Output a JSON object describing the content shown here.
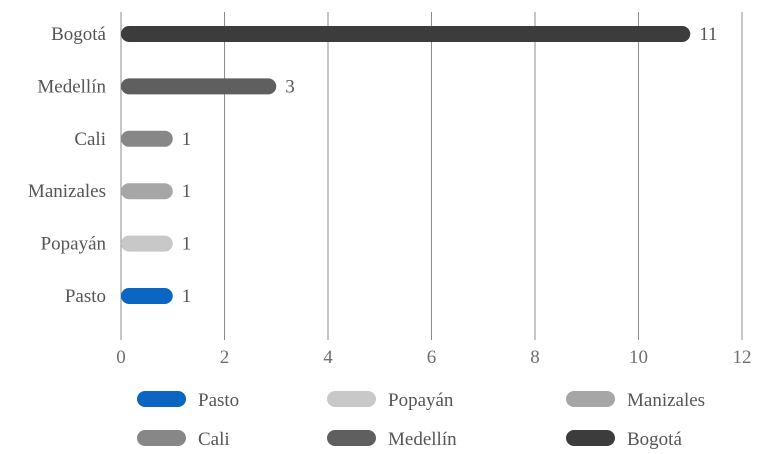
{
  "chart_data": {
    "type": "bar",
    "orientation": "horizontal",
    "title": "",
    "xlabel": "",
    "ylabel": "",
    "categories": [
      "Pasto",
      "Popayán",
      "Manizales",
      "Cali",
      "Medellín",
      "Bogotá"
    ],
    "values": [
      1,
      1,
      1,
      1,
      3,
      11
    ],
    "bar_value_labels": [
      "1",
      "1",
      "1",
      "1",
      "3",
      "11"
    ],
    "colors": [
      "#0a66c2",
      "#c8c8c8",
      "#a6a6a6",
      "#878787",
      "#5f5f5f",
      "#3c3c3c"
    ],
    "xlim": [
      0,
      12
    ],
    "x_ticks": [
      0,
      2,
      4,
      6,
      8,
      10,
      12
    ],
    "grid": "vertical",
    "legend": {
      "placement": "bottom",
      "entries": [
        "Pasto",
        "Popayán",
        "Manizales",
        "Cali",
        "Medellín",
        "Bogotá"
      ]
    }
  }
}
